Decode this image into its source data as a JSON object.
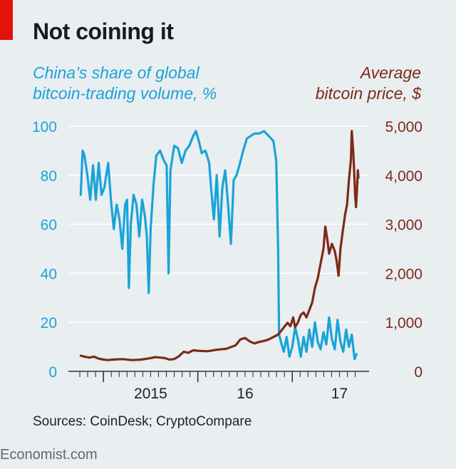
{
  "header": {
    "title": "Not coining it"
  },
  "footer": {
    "source": "Sources: CoinDesk; CryptoCompare",
    "brand": "Economist.com"
  },
  "colors": {
    "brand_red": "#e3120b",
    "left_series": "#1aa3d8",
    "right_series": "#7e2a17",
    "gridline": "#ffffff",
    "background": "#e9eef1"
  },
  "chart_data": {
    "type": "line",
    "left_axis_label": [
      "China’s share of global",
      "bitcoin-trading volume, %"
    ],
    "right_axis_label": [
      "Average",
      "bitcoin price, $"
    ],
    "left_ylim": [
      0,
      100
    ],
    "right_ylim": [
      0,
      5000
    ],
    "left_ticks": [
      0,
      20,
      40,
      60,
      80,
      100
    ],
    "right_ticks": [
      0,
      1000,
      2000,
      3000,
      4000,
      5000
    ],
    "right_tick_labels": [
      "0",
      "1,000",
      "2,000",
      "3,000",
      "4,000",
      "5,000"
    ],
    "xlim": [
      2014.75,
      2017.7
    ],
    "x_labels": [
      {
        "label": "2015",
        "x": 2015.5
      },
      {
        "label": "16",
        "x": 2016.5
      },
      {
        "label": "17",
        "x": 2017.5
      }
    ],
    "year_boundaries": [
      2015.0,
      2016.0,
      2017.0
    ],
    "grid": true,
    "series": [
      {
        "name": "China’s share of global bitcoin-trading volume, %",
        "axis": "left",
        "points": [
          [
            2014.76,
            72
          ],
          [
            2014.78,
            90
          ],
          [
            2014.8,
            88
          ],
          [
            2014.83,
            80
          ],
          [
            2014.86,
            70
          ],
          [
            2014.89,
            84
          ],
          [
            2014.92,
            70
          ],
          [
            2014.95,
            85
          ],
          [
            2014.98,
            72
          ],
          [
            2015.01,
            75
          ],
          [
            2015.05,
            85
          ],
          [
            2015.08,
            70
          ],
          [
            2015.11,
            58
          ],
          [
            2015.14,
            68
          ],
          [
            2015.17,
            62
          ],
          [
            2015.2,
            50
          ],
          [
            2015.23,
            68
          ],
          [
            2015.25,
            70
          ],
          [
            2015.27,
            34
          ],
          [
            2015.29,
            60
          ],
          [
            2015.32,
            72
          ],
          [
            2015.35,
            68
          ],
          [
            2015.38,
            55
          ],
          [
            2015.41,
            70
          ],
          [
            2015.44,
            63
          ],
          [
            2015.46,
            55
          ],
          [
            2015.48,
            32
          ],
          [
            2015.5,
            58
          ],
          [
            2015.53,
            76
          ],
          [
            2015.56,
            88
          ],
          [
            2015.6,
            90
          ],
          [
            2015.64,
            86
          ],
          [
            2015.67,
            84
          ],
          [
            2015.69,
            40
          ],
          [
            2015.71,
            82
          ],
          [
            2015.75,
            92
          ],
          [
            2015.79,
            91
          ],
          [
            2015.83,
            85
          ],
          [
            2015.87,
            90
          ],
          [
            2015.91,
            92
          ],
          [
            2015.95,
            96
          ],
          [
            2015.98,
            98
          ],
          [
            2016.01,
            94
          ],
          [
            2016.04,
            89
          ],
          [
            2016.08,
            90
          ],
          [
            2016.12,
            85
          ],
          [
            2016.14,
            75
          ],
          [
            2016.17,
            62
          ],
          [
            2016.2,
            80
          ],
          [
            2016.23,
            55
          ],
          [
            2016.26,
            75
          ],
          [
            2016.29,
            82
          ],
          [
            2016.32,
            68
          ],
          [
            2016.35,
            52
          ],
          [
            2016.38,
            78
          ],
          [
            2016.41,
            80
          ],
          [
            2016.44,
            84
          ],
          [
            2016.48,
            90
          ],
          [
            2016.52,
            95
          ],
          [
            2016.56,
            96
          ],
          [
            2016.6,
            97
          ],
          [
            2016.65,
            97
          ],
          [
            2016.7,
            98
          ],
          [
            2016.75,
            96
          ],
          [
            2016.8,
            94
          ],
          [
            2016.83,
            86
          ],
          [
            2016.85,
            50
          ],
          [
            2016.86,
            15
          ],
          [
            2016.88,
            12
          ],
          [
            2016.91,
            8
          ],
          [
            2016.94,
            14
          ],
          [
            2016.97,
            6
          ],
          [
            2017.0,
            10
          ],
          [
            2017.03,
            18
          ],
          [
            2017.06,
            13
          ],
          [
            2017.09,
            6
          ],
          [
            2017.12,
            14
          ],
          [
            2017.15,
            8
          ],
          [
            2017.18,
            17
          ],
          [
            2017.21,
            10
          ],
          [
            2017.24,
            20
          ],
          [
            2017.27,
            12
          ],
          [
            2017.3,
            9
          ],
          [
            2017.33,
            16
          ],
          [
            2017.36,
            11
          ],
          [
            2017.39,
            22
          ],
          [
            2017.42,
            13
          ],
          [
            2017.45,
            9
          ],
          [
            2017.48,
            21
          ],
          [
            2017.51,
            12
          ],
          [
            2017.54,
            8
          ],
          [
            2017.57,
            17
          ],
          [
            2017.6,
            10
          ],
          [
            2017.63,
            15
          ],
          [
            2017.66,
            5
          ],
          [
            2017.68,
            7
          ]
        ]
      },
      {
        "name": "Average bitcoin price, $",
        "axis": "right",
        "points": [
          [
            2014.76,
            320
          ],
          [
            2014.8,
            300
          ],
          [
            2014.85,
            280
          ],
          [
            2014.9,
            300
          ],
          [
            2014.95,
            260
          ],
          [
            2015.0,
            240
          ],
          [
            2015.05,
            230
          ],
          [
            2015.1,
            240
          ],
          [
            2015.2,
            250
          ],
          [
            2015.3,
            230
          ],
          [
            2015.4,
            240
          ],
          [
            2015.5,
            270
          ],
          [
            2015.55,
            290
          ],
          [
            2015.6,
            280
          ],
          [
            2015.65,
            270
          ],
          [
            2015.7,
            240
          ],
          [
            2015.75,
            250
          ],
          [
            2015.8,
            310
          ],
          [
            2015.85,
            400
          ],
          [
            2015.9,
            380
          ],
          [
            2015.95,
            430
          ],
          [
            2016.0,
            420
          ],
          [
            2016.1,
            410
          ],
          [
            2016.2,
            440
          ],
          [
            2016.3,
            460
          ],
          [
            2016.4,
            530
          ],
          [
            2016.45,
            650
          ],
          [
            2016.5,
            680
          ],
          [
            2016.55,
            610
          ],
          [
            2016.6,
            570
          ],
          [
            2016.65,
            600
          ],
          [
            2016.7,
            620
          ],
          [
            2016.75,
            650
          ],
          [
            2016.8,
            700
          ],
          [
            2016.85,
            750
          ],
          [
            2016.88,
            820
          ],
          [
            2016.92,
            920
          ],
          [
            2016.95,
            990
          ],
          [
            2016.98,
            920
          ],
          [
            2017.01,
            1100
          ],
          [
            2017.03,
            900
          ],
          [
            2017.06,
            1000
          ],
          [
            2017.09,
            1150
          ],
          [
            2017.12,
            1200
          ],
          [
            2017.15,
            1100
          ],
          [
            2017.18,
            1250
          ],
          [
            2017.21,
            1400
          ],
          [
            2017.24,
            1700
          ],
          [
            2017.27,
            1900
          ],
          [
            2017.3,
            2200
          ],
          [
            2017.33,
            2500
          ],
          [
            2017.35,
            2950
          ],
          [
            2017.37,
            2700
          ],
          [
            2017.39,
            2400
          ],
          [
            2017.42,
            2600
          ],
          [
            2017.45,
            2450
          ],
          [
            2017.47,
            2250
          ],
          [
            2017.49,
            1950
          ],
          [
            2017.51,
            2500
          ],
          [
            2017.53,
            2800
          ],
          [
            2017.56,
            3200
          ],
          [
            2017.58,
            3400
          ],
          [
            2017.6,
            3900
          ],
          [
            2017.62,
            4300
          ],
          [
            2017.63,
            4900
          ],
          [
            2017.645,
            4500
          ],
          [
            2017.655,
            4100
          ],
          [
            2017.665,
            3600
          ],
          [
            2017.675,
            3350
          ],
          [
            2017.685,
            3700
          ],
          [
            2017.695,
            4100
          ],
          [
            2017.7,
            3950
          ]
        ]
      }
    ]
  }
}
